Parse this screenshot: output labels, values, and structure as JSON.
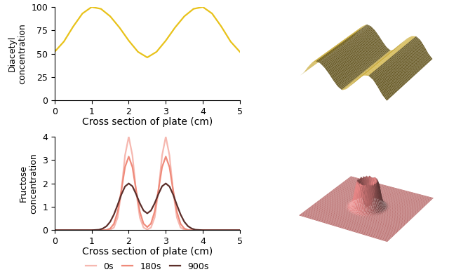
{
  "chart_data": [
    {
      "type": "line",
      "x_label": "Cross section of plate (cm)",
      "y_label": "Diacetyl\nconcentration",
      "xlim": [
        0,
        5
      ],
      "ylim": [
        0,
        100
      ],
      "xticks": [
        0,
        1,
        2,
        3,
        4,
        5
      ],
      "yticks": [
        0,
        25,
        50,
        75,
        100
      ],
      "x": [
        0,
        0.25,
        0.5,
        0.75,
        1,
        1.25,
        1.5,
        1.75,
        2,
        2.25,
        2.5,
        2.75,
        3,
        3.25,
        3.5,
        3.75,
        4,
        4.25,
        4.5,
        4.75,
        5
      ],
      "series": [
        {
          "name": "Diacetyl",
          "color": "#e8c21a",
          "values": [
            52,
            63,
            79,
            93,
            100,
            98,
            90,
            78,
            64,
            52,
            46,
            52,
            64,
            78,
            90,
            98,
            100,
            93,
            79,
            63,
            52
          ]
        }
      ]
    },
    {
      "type": "line",
      "x_label": "Cross section of plate (cm)",
      "y_label": "Fructose\nconcentration",
      "xlim": [
        0,
        5
      ],
      "ylim": [
        0,
        4
      ],
      "xticks": [
        0,
        1,
        2,
        3,
        4,
        5
      ],
      "yticks": [
        0,
        1,
        2,
        3,
        4
      ],
      "legend": "bottom",
      "x": [
        0,
        0.5,
        1.0,
        1.1,
        1.2,
        1.3,
        1.4,
        1.5,
        1.6,
        1.7,
        1.8,
        1.9,
        2.0,
        2.1,
        2.2,
        2.3,
        2.4,
        2.5,
        2.6,
        2.7,
        2.8,
        2.9,
        3.0,
        3.1,
        3.2,
        3.3,
        3.4,
        3.5,
        3.6,
        3.7,
        3.8,
        3.9,
        4.0,
        4.5,
        5
      ],
      "series": [
        {
          "name": "0s",
          "color": "#f6b8b0",
          "values": [
            0,
            0,
            0,
            0,
            0,
            0,
            0,
            0.02,
            0.11,
            0.54,
            1.64,
            3.2,
            4,
            3.2,
            1.64,
            0.54,
            0.11,
            0.03,
            0.11,
            0.54,
            1.64,
            3.2,
            4,
            3.2,
            1.64,
            0.54,
            0.11,
            0.02,
            0,
            0,
            0,
            0,
            0,
            0,
            0
          ]
        },
        {
          "name": "180s",
          "color": "#ef8a7a",
          "values": [
            0,
            0,
            0,
            0,
            0,
            0,
            0.01,
            0.07,
            0.27,
            0.78,
            1.7,
            2.7,
            3.15,
            2.7,
            1.71,
            0.79,
            0.28,
            0.13,
            0.28,
            0.79,
            1.71,
            2.7,
            3.15,
            2.7,
            1.7,
            0.78,
            0.27,
            0.07,
            0.01,
            0,
            0,
            0,
            0,
            0,
            0
          ]
        },
        {
          "name": "900s",
          "color": "#5c2e2a",
          "values": [
            0,
            0,
            0,
            0.01,
            0.02,
            0.07,
            0.17,
            0.36,
            0.67,
            1.08,
            1.52,
            1.87,
            2.0,
            1.88,
            1.54,
            1.15,
            0.84,
            0.72,
            0.84,
            1.15,
            1.54,
            1.88,
            2.0,
            1.87,
            1.52,
            1.08,
            0.67,
            0.36,
            0.17,
            0.07,
            0.02,
            0.01,
            0,
            0,
            0
          ]
        }
      ]
    }
  ]
}
